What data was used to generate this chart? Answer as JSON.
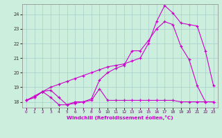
{
  "xlabel": "Windchill (Refroidissement éolien,°C)",
  "bg_color": "#cceedd",
  "grid_color": "#aacccc",
  "line_color": "#cc00cc",
  "xlim": [
    -0.5,
    23.5
  ],
  "ylim": [
    17.6,
    24.7
  ],
  "yticks": [
    18,
    19,
    20,
    21,
    22,
    23,
    24
  ],
  "xticks": [
    0,
    1,
    2,
    3,
    4,
    5,
    6,
    7,
    8,
    9,
    10,
    11,
    12,
    13,
    14,
    15,
    16,
    17,
    18,
    19,
    20,
    21,
    22,
    23
  ],
  "series1_x": [
    0,
    1,
    2,
    3,
    4,
    5,
    6,
    7,
    8,
    9,
    10,
    11,
    12,
    13,
    14,
    15,
    16,
    17,
    18,
    19,
    20,
    21,
    22,
    23
  ],
  "series1_y": [
    18.1,
    18.3,
    18.7,
    18.3,
    17.8,
    17.8,
    18.0,
    18.0,
    18.1,
    18.9,
    18.1,
    18.1,
    18.1,
    18.1,
    18.1,
    18.1,
    18.1,
    18.1,
    18.1,
    18.0,
    18.0,
    18.0,
    18.0,
    18.0
  ],
  "series2_x": [
    0,
    1,
    2,
    3,
    4,
    5,
    6,
    7,
    8,
    9,
    10,
    11,
    12,
    13,
    14,
    15,
    16,
    17,
    18,
    19,
    20,
    21,
    22,
    23
  ],
  "series2_y": [
    18.1,
    18.3,
    18.7,
    18.8,
    18.3,
    17.8,
    17.9,
    18.0,
    18.2,
    19.5,
    20.0,
    20.3,
    20.5,
    21.5,
    21.5,
    22.2,
    23.0,
    23.5,
    23.3,
    21.8,
    20.9,
    19.1,
    18.0,
    18.0
  ],
  "series3_x": [
    0,
    1,
    2,
    3,
    4,
    5,
    6,
    7,
    8,
    9,
    10,
    11,
    12,
    13,
    14,
    15,
    16,
    17,
    18,
    19,
    20,
    21,
    22,
    23
  ],
  "series3_y": [
    18.1,
    18.4,
    18.7,
    19.0,
    19.2,
    19.4,
    19.6,
    19.8,
    20.0,
    20.2,
    20.4,
    20.5,
    20.6,
    20.8,
    21.0,
    22.0,
    23.5,
    24.6,
    24.1,
    23.4,
    23.3,
    23.2,
    21.5,
    19.1
  ]
}
